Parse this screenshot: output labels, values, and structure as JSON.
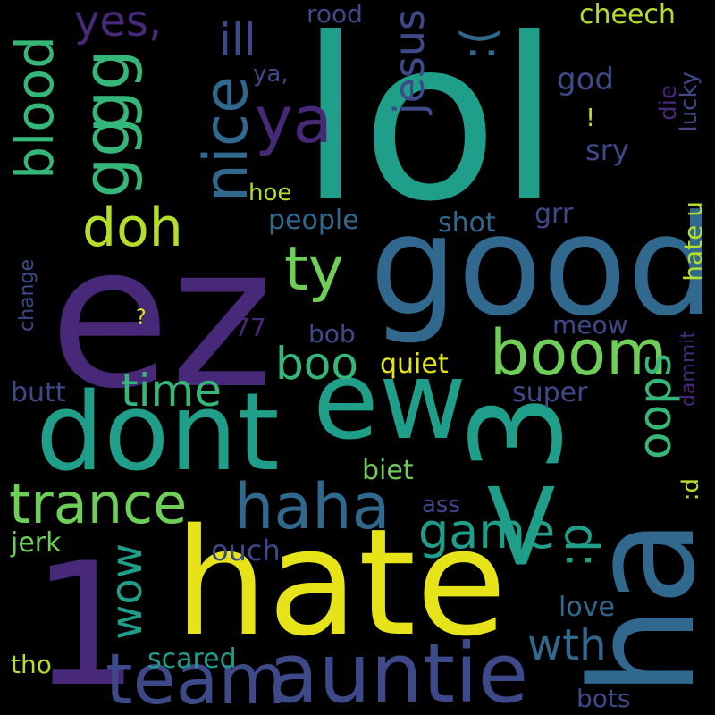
{
  "background": "#000000",
  "palette": {
    "yellow": "#e6e419",
    "lime": "#b5de2b",
    "green": "#6ece58",
    "emerald": "#35b779",
    "teal": "#1f9e89",
    "cyan": "#26828e",
    "steel": "#31688e",
    "indigo": "#3e4989",
    "purple": "#482878",
    "violet": "#440154"
  },
  "words": [
    {
      "key": "lol",
      "text": "lol"
    },
    {
      "key": "ez",
      "text": "ez"
    },
    {
      "key": "good",
      "text": "good"
    },
    {
      "key": "hate",
      "text": "hate"
    },
    {
      "key": "dont",
      "text": "dont"
    },
    {
      "key": "ew",
      "text": "ew"
    },
    {
      "key": "less_than_3",
      "text": "<3"
    },
    {
      "key": "ha",
      "text": "ha"
    },
    {
      "key": "one",
      "text": "1"
    },
    {
      "key": "auntie",
      "text": "auntie"
    },
    {
      "key": "team",
      "text": "team"
    },
    {
      "key": "haha",
      "text": "haha"
    },
    {
      "key": "trance",
      "text": "trance"
    },
    {
      "key": "boom",
      "text": "boom"
    },
    {
      "key": "gg_1",
      "text": "gg"
    },
    {
      "key": "gg_2",
      "text": "gg"
    },
    {
      "key": "nice",
      "text": "nice"
    },
    {
      "key": "blood",
      "text": "blood"
    },
    {
      "key": "ya",
      "text": "ya"
    },
    {
      "key": "ty",
      "text": "ty"
    },
    {
      "key": "doh",
      "text": "doh"
    },
    {
      "key": "yes",
      "text": "yes,"
    },
    {
      "key": "ill",
      "text": "ill"
    },
    {
      "key": "jesus",
      "text": "jesus"
    },
    {
      "key": "sad_face",
      "text": ":("
    },
    {
      "key": "oops",
      "text": "oops"
    },
    {
      "key": "game",
      "text": "game"
    },
    {
      "key": "tongue",
      "text": ":p"
    },
    {
      "key": "wow",
      "text": "wow"
    },
    {
      "key": "wth",
      "text": "wth"
    },
    {
      "key": "time",
      "text": "time"
    },
    {
      "key": "boo",
      "text": "boo"
    },
    {
      "key": "cheech",
      "text": "cheech"
    },
    {
      "key": "rood",
      "text": "rood"
    },
    {
      "key": "ya_comma",
      "text": "ya,"
    },
    {
      "key": "god",
      "text": "god"
    },
    {
      "key": "exclaim",
      "text": "!"
    },
    {
      "key": "die",
      "text": "die"
    },
    {
      "key": "lucky",
      "text": "lucky"
    },
    {
      "key": "sry",
      "text": "sry"
    },
    {
      "key": "hoe",
      "text": "hoe"
    },
    {
      "key": "people",
      "text": "people"
    },
    {
      "key": "grr",
      "text": "grr"
    },
    {
      "key": "shot",
      "text": "shot"
    },
    {
      "key": "hate_u",
      "text": "hate u"
    },
    {
      "key": "change",
      "text": "change"
    },
    {
      "key": "question",
      "text": "?"
    },
    {
      "key": "seventy_seven",
      "text": "77"
    },
    {
      "key": "bob",
      "text": "bob"
    },
    {
      "key": "meow",
      "text": "meow"
    },
    {
      "key": "dammit",
      "text": "dammit"
    },
    {
      "key": "quiet",
      "text": "quiet"
    },
    {
      "key": "butt",
      "text": "butt"
    },
    {
      "key": "super",
      "text": "super"
    },
    {
      "key": "biet",
      "text": "biet"
    },
    {
      "key": "big_d",
      "text": ":d"
    },
    {
      "key": "ass",
      "text": "ass"
    },
    {
      "key": "jerk",
      "text": "jerk"
    },
    {
      "key": "ouch",
      "text": "ouch"
    },
    {
      "key": "love",
      "text": "love"
    },
    {
      "key": "tho",
      "text": "tho"
    },
    {
      "key": "scared",
      "text": "scared"
    },
    {
      "key": "bots",
      "text": "bots"
    }
  ]
}
